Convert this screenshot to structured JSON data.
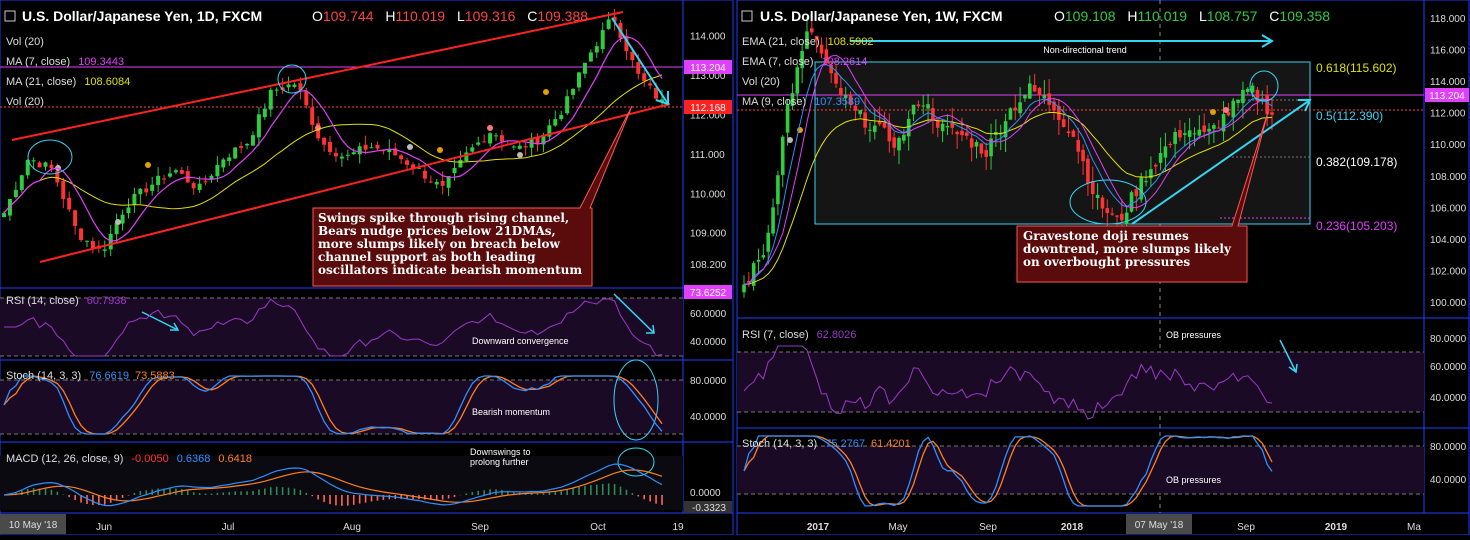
{
  "left": {
    "title": "U.S. Dollar/Japanese Yen, 1D, FXCM",
    "ohlc": {
      "o_label": "O",
      "o": "109.744",
      "h_label": "H",
      "h": "110.019",
      "l_label": "L",
      "l": "109.316",
      "c_label": "C",
      "c": "109.388"
    },
    "legend": {
      "vol_top": "Vol (20)",
      "ma7_label": "MA (7, close)",
      "ma7_value": "109.3443",
      "ma21_label": "MA (21, close)",
      "ma21_value": "108.6084",
      "vol_label": "Vol (20)"
    },
    "price_axis": {
      "ticks": [
        "114.000",
        "113.000",
        "112.000",
        "111.000",
        "110.000",
        "109.000",
        "108.200"
      ],
      "tag_upper": "113.204",
      "tag_lower": "112.168"
    },
    "annotation": "Swings spike through rising channel, Bears nudge prices below 21DMAs, more slumps likely on breach below channel support as both leading oscillators indicate bearish momentum",
    "rsi": {
      "label": "RSI (14, close)",
      "value": "60.7938",
      "tag": "73.6252",
      "ticks": [
        "60.0000",
        "40.0000"
      ],
      "note": "Downward convergence"
    },
    "stoch": {
      "label": "Stoch (14, 3, 3)",
      "k": "76.6619",
      "d": "73.5883",
      "ticks": [
        "80.0000",
        "40.0000"
      ],
      "note": "Bearish momentum"
    },
    "macd": {
      "label": "MACD (12, 26, close, 9)",
      "hist": "-0.0050",
      "macd": "0.6368",
      "signal": "0.6418",
      "ticks": [
        "0.0000",
        "-0.3323"
      ],
      "note": "Downswings to prolong further"
    },
    "time_axis": {
      "cursor": "10 May '18",
      "labels": [
        "Jun",
        "Jul",
        "Aug",
        "Sep",
        "Oct",
        "19"
      ]
    },
    "colors": {
      "up": "#2ecc40",
      "down": "#ff3333",
      "ma7": "#e040fb",
      "ma21": "#e0e000",
      "channel": "#ff2222",
      "arrow": "#33d6f5"
    }
  },
  "right": {
    "title": "U.S. Dollar/Japanese Yen, 1W, FXCM",
    "ohlc": {
      "o_label": "O",
      "o": "109.108",
      "h_label": "H",
      "h": "110.019",
      "l_label": "L",
      "l": "108.757",
      "c_label": "C",
      "c": "109.358"
    },
    "legend": {
      "ema21_label": "EMA (21, close)",
      "ema21_value": "108.5902",
      "ema7_label": "EMA (7, close)",
      "ema7_value": "108.2614",
      "vol_label": "Vol (20)",
      "ma9_label": "MA (9, close)",
      "ma9_value": "107.3589"
    },
    "price_axis": {
      "ticks": [
        "118.000",
        "116.000",
        "114.000",
        "112.000",
        "110.000",
        "108.000",
        "106.000",
        "104.000",
        "102.000",
        "100.000"
      ],
      "tag": "113.204"
    },
    "fib": [
      "0.618(115.602)",
      "0.5(112.390)",
      "0.382(109.178)",
      "0.236(105.203)"
    ],
    "trend_note": "Non-directional trend",
    "annotation": "Gravestone doji resumes downtrend, more slumps likely on overbought pressures",
    "rsi": {
      "label": "RSI (7, close)",
      "value": "62.8026",
      "ticks": [
        "80.0000",
        "60.0000",
        "40.0000"
      ],
      "note": "OB pressures"
    },
    "stoch": {
      "label": "Stoch (14, 3, 3)",
      "k": "75.2767",
      "d": "61.4201",
      "ticks": [
        "80.0000",
        "40.0000"
      ],
      "note": "OB pressures"
    },
    "time_axis": {
      "cursor": "07 May '18",
      "labels": [
        "2017",
        "May",
        "Sep",
        "2018",
        "Sep",
        "2019",
        "Ma"
      ]
    }
  },
  "chart_data": [
    {
      "type": "candlestick",
      "title": "U.S. Dollar/Japanese Yen, 1D, FXCM",
      "ylim": [
        107.8,
        114.6
      ],
      "x": [
        "Jun",
        "Jul",
        "Aug",
        "Sep",
        "Oct"
      ],
      "close_path": [
        109.5,
        110.9,
        110.6,
        109.0,
        108.5,
        109.7,
        110.2,
        110.6,
        110.1,
        110.9,
        111.3,
        112.6,
        112.8,
        111.3,
        110.9,
        111.2,
        111.0,
        110.6,
        110.1,
        111.0,
        111.6,
        111.1,
        111.4,
        112.2,
        113.5,
        114.5,
        113.0,
        112.3
      ],
      "indicators": {
        "rsi_range": [
          30,
          80
        ],
        "stoch_range": [
          0,
          100
        ],
        "macd": [
          0.6368,
          0.6418,
          -0.005
        ]
      }
    },
    {
      "type": "candlestick",
      "title": "U.S. Dollar/Japanese Yen, 1W, FXCM",
      "ylim": [
        99.5,
        118.5
      ],
      "x": [
        "2017",
        "May",
        "Sep",
        "2018",
        "Sep",
        "2019"
      ],
      "close_path": [
        101.0,
        103.5,
        112.5,
        117.5,
        114.0,
        112.0,
        111.0,
        110.0,
        113.0,
        111.0,
        110.5,
        109.5,
        112.0,
        113.5,
        112.5,
        110.5,
        106.5,
        105.0,
        107.5,
        109.5,
        111.0,
        110.5,
        112.0,
        113.5,
        112.0
      ],
      "fib_levels": [
        115.602,
        112.39,
        109.178,
        105.203
      ]
    }
  ]
}
